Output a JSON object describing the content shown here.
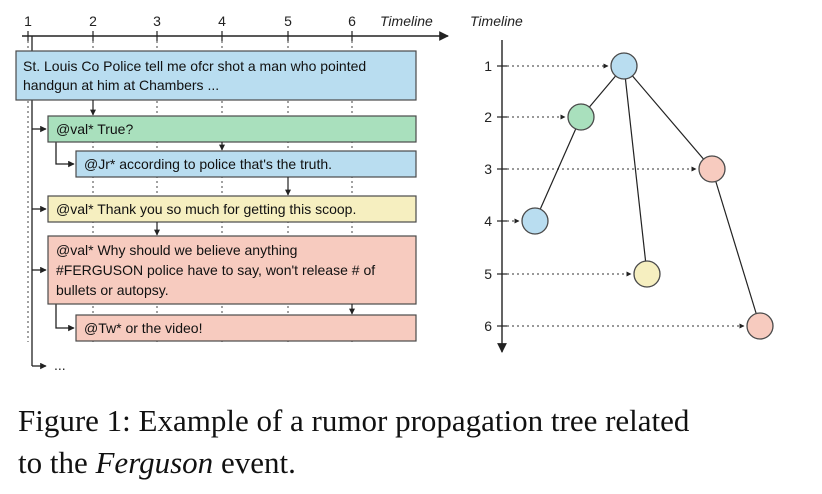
{
  "left_panel": {
    "timeline_label": "Timeline",
    "ticks": [
      "1",
      "2",
      "3",
      "4",
      "5",
      "6"
    ],
    "posts": [
      {
        "lines": [
          "St. Louis Co Police tell me ofcr shot a man who pointed",
          "handgun at him at Chambers ..."
        ],
        "fill": "#b9ddf0"
      },
      {
        "lines": [
          "@val* True?"
        ],
        "fill": "#a9e0bd"
      },
      {
        "lines": [
          "@Jr* according to police that's the truth."
        ],
        "fill": "#b9ddf0"
      },
      {
        "lines": [
          "@val* Thank you so much for getting this scoop."
        ],
        "fill": "#f6efc0"
      },
      {
        "lines": [
          "@val* Why should we believe anything",
          "#FERGUSON police have to say, won't release # of",
          "bullets or autopsy."
        ],
        "fill": "#f7cbbf"
      },
      {
        "lines": [
          "@Tw* or the video!"
        ],
        "fill": "#f7cbbf"
      }
    ],
    "more": "..."
  },
  "right_panel": {
    "timeline_label": "Timeline",
    "ticks": [
      "1",
      "2",
      "3",
      "4",
      "5",
      "6"
    ],
    "nodes": [
      {
        "time": 1,
        "fill": "#b9ddf0"
      },
      {
        "time": 2,
        "fill": "#a9e0bd"
      },
      {
        "time": 3,
        "fill": "#f7cbbf"
      },
      {
        "time": 4,
        "fill": "#b9ddf0"
      },
      {
        "time": 5,
        "fill": "#f6efc0"
      },
      {
        "time": 6,
        "fill": "#f7cbbf"
      }
    ]
  },
  "caption": {
    "prefix": "Figure 1: Example of a rumor propagation tree related",
    "line2_start": "to the ",
    "emphasis": "Ferguson",
    "line2_end": " event."
  }
}
